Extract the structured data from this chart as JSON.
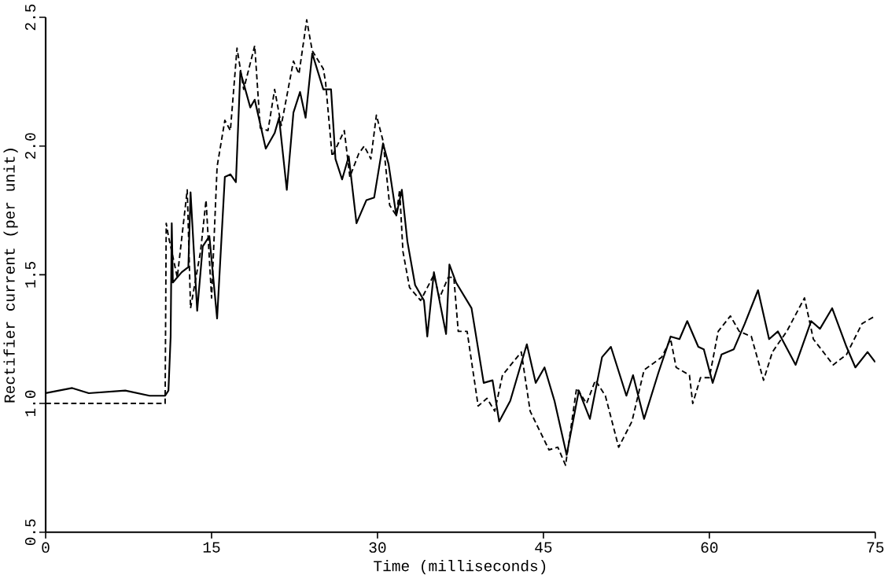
{
  "chart_data": {
    "type": "line",
    "xlabel": "Time (milliseconds)",
    "ylabel": "Rectifier current (per unit)",
    "xlim": [
      0,
      75
    ],
    "ylim": [
      0.5,
      2.5
    ],
    "xticks": [
      0,
      15,
      30,
      45,
      60,
      75
    ],
    "yticks": [
      0.5,
      {
        "value": 1.0,
        "label": "1.0"
      },
      1.5,
      {
        "value": 2.0,
        "label": "2.0"
      },
      2.5
    ],
    "grid": false,
    "series": [
      {
        "color": "#000000",
        "line_style": "solid",
        "x": [
          0,
          2.4,
          3.9,
          7.2,
          9.4,
          10.8,
          11.1,
          11.3,
          11.4,
          11.5,
          12.3,
          12.9,
          13.1,
          13.7,
          14.2,
          14.8,
          15.5,
          16.2,
          16.7,
          17.2,
          17.6,
          18.5,
          18.9,
          19.9,
          20.7,
          21.1,
          21.8,
          22.4,
          23.0,
          23.5,
          24.1,
          25.1,
          25.8,
          26.2,
          26.8,
          27.4,
          28.1,
          29.0,
          29.7,
          30.5,
          31.0,
          31.7,
          32.2,
          32.7,
          33.4,
          34.2,
          34.5,
          35.1,
          36.2,
          36.5,
          37.1,
          38.5,
          39.6,
          40.4,
          41.0,
          42.0,
          43.5,
          44.3,
          45.1,
          46.0,
          47.1,
          48.2,
          49.2,
          50.3,
          51.1,
          52.5,
          53.1,
          54.1,
          55.4,
          56.5,
          57.3,
          58.0,
          59.0,
          59.5,
          60.3,
          61.1,
          62.2,
          63.2,
          64.4,
          65.4,
          66.2,
          67.8,
          69.2,
          70.0,
          71.1,
          72.4,
          73.2,
          74.3,
          75.0
        ],
        "values": [
          1.04,
          1.06,
          1.04,
          1.05,
          1.03,
          1.03,
          1.05,
          1.26,
          1.7,
          1.47,
          1.51,
          1.53,
          1.82,
          1.36,
          1.61,
          1.65,
          1.33,
          1.88,
          1.89,
          1.86,
          2.29,
          2.15,
          2.18,
          1.99,
          2.05,
          2.11,
          1.83,
          2.13,
          2.21,
          2.11,
          2.36,
          2.22,
          2.22,
          1.95,
          1.87,
          1.96,
          1.7,
          1.79,
          1.8,
          2.01,
          1.93,
          1.73,
          1.83,
          1.63,
          1.46,
          1.4,
          1.26,
          1.51,
          1.27,
          1.54,
          1.47,
          1.37,
          1.08,
          1.09,
          0.93,
          1.01,
          1.23,
          1.08,
          1.14,
          1.01,
          0.8,
          1.05,
          0.94,
          1.18,
          1.22,
          1.03,
          1.11,
          0.94,
          1.12,
          1.26,
          1.25,
          1.32,
          1.22,
          1.21,
          1.08,
          1.19,
          1.21,
          1.31,
          1.44,
          1.25,
          1.28,
          1.15,
          1.32,
          1.29,
          1.37,
          1.22,
          1.14,
          1.2,
          1.16
        ]
      },
      {
        "color": "#000000",
        "line_style": "dashed",
        "x": [
          0,
          10.8,
          10.9,
          11.1,
          11.9,
          12.8,
          13.1,
          14.0,
          14.5,
          15.0,
          15.5,
          16.2,
          16.7,
          17.3,
          17.9,
          18.9,
          19.4,
          20.1,
          20.7,
          21.3,
          22.4,
          22.9,
          23.6,
          24.1,
          25.1,
          25.3,
          25.9,
          27.0,
          27.5,
          28.3,
          28.8,
          29.4,
          29.9,
          30.5,
          31.1,
          31.7,
          32.0,
          32.3,
          32.9,
          33.9,
          35.1,
          35.6,
          36.4,
          36.9,
          37.3,
          38.1,
          39.1,
          39.9,
          40.6,
          41.3,
          43.0,
          43.8,
          45.5,
          46.3,
          47.0,
          48.0,
          48.9,
          49.7,
          50.6,
          51.8,
          53.0,
          54.1,
          55.7,
          56.5,
          57.0,
          58.2,
          58.5,
          59.2,
          60.0,
          60.8,
          61.9,
          62.7,
          63.8,
          64.9,
          65.7,
          67.0,
          68.6,
          69.4,
          71.2,
          72.4,
          73.8,
          75.0
        ],
        "values": [
          1.0,
          1.0,
          1.7,
          1.65,
          1.49,
          1.83,
          1.37,
          1.59,
          1.79,
          1.41,
          1.92,
          2.1,
          2.06,
          2.38,
          2.22,
          2.39,
          2.07,
          2.06,
          2.22,
          2.08,
          2.33,
          2.28,
          2.49,
          2.37,
          2.3,
          2.25,
          1.96,
          2.06,
          1.88,
          1.97,
          2.0,
          1.95,
          2.12,
          2.02,
          1.77,
          1.73,
          1.83,
          1.59,
          1.45,
          1.4,
          1.5,
          1.41,
          1.49,
          1.49,
          1.28,
          1.28,
          0.99,
          1.02,
          0.97,
          1.11,
          1.2,
          0.97,
          0.82,
          0.83,
          0.76,
          1.06,
          1.0,
          1.09,
          1.03,
          0.83,
          0.93,
          1.13,
          1.18,
          1.25,
          1.14,
          1.11,
          1.0,
          1.1,
          1.1,
          1.28,
          1.34,
          1.28,
          1.26,
          1.09,
          1.2,
          1.28,
          1.41,
          1.25,
          1.15,
          1.19,
          1.31,
          1.34
        ]
      }
    ]
  }
}
